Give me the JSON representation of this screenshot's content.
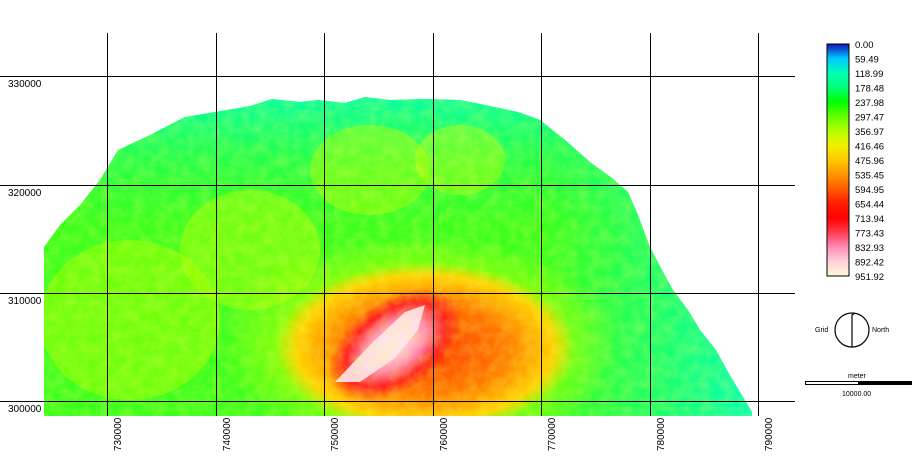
{
  "map": {
    "x_ticks": [
      "730000",
      "740000",
      "750000",
      "760000",
      "770000",
      "780000",
      "790000"
    ],
    "y_ticks": [
      "330000",
      "320000",
      "310000",
      "300000"
    ]
  },
  "legend": {
    "values": [
      "0.00",
      "59.49",
      "118.99",
      "178.48",
      "237.98",
      "297.47",
      "356.97",
      "416.46",
      "475.96",
      "535.45",
      "594.95",
      "654.44",
      "713.94",
      "773.43",
      "832.93",
      "892.42",
      "951.92"
    ],
    "colors": [
      "#1414b4",
      "#00c8ff",
      "#00ffb4",
      "#00ff78",
      "#00ff00",
      "#64ff00",
      "#b4ff00",
      "#f0f000",
      "#ffc800",
      "#ff9600",
      "#ff5a00",
      "#ff1e00",
      "#ff0000",
      "#ff3c50",
      "#ff8cb4",
      "#ffd2dc",
      "#fff5d2"
    ]
  },
  "north_arrow": {
    "left_label": "Grid",
    "right_label": "North"
  },
  "scale_bar": {
    "unit": "meter",
    "value": "10000.00"
  }
}
